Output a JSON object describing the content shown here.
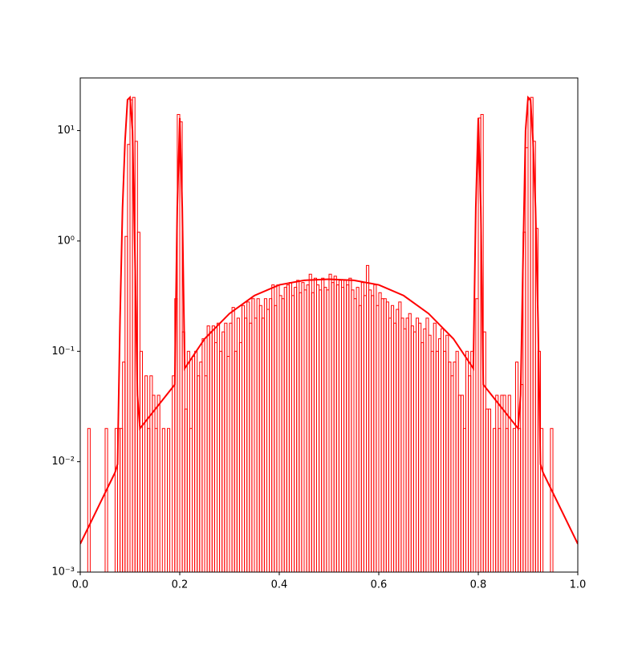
{
  "chart_data": {
    "type": "histogram",
    "color": "#ff0000",
    "log_y": true,
    "bins": [
      0,
      0.005,
      0.01,
      0.015,
      0.02,
      0.025,
      0.03,
      0.035,
      0.04,
      0.045,
      0.05,
      0.055,
      0.06,
      0.065,
      0.07,
      0.075,
      0.08,
      0.085,
      0.09,
      0.095,
      0.1,
      0.105,
      0.11,
      0.115,
      0.12,
      0.125,
      0.13,
      0.135,
      0.14,
      0.145,
      0.15,
      0.155,
      0.16,
      0.165,
      0.17,
      0.175,
      0.18,
      0.185,
      0.19,
      0.195,
      0.2,
      0.205,
      0.21,
      0.215,
      0.22,
      0.225,
      0.23,
      0.235,
      0.24,
      0.245,
      0.25,
      0.255,
      0.26,
      0.265,
      0.27,
      0.275,
      0.28,
      0.285,
      0.29,
      0.295,
      0.3,
      0.305,
      0.31,
      0.315,
      0.32,
      0.325,
      0.33,
      0.335,
      0.34,
      0.345,
      0.35,
      0.355,
      0.36,
      0.365,
      0.37,
      0.375,
      0.38,
      0.385,
      0.39,
      0.395,
      0.4,
      0.405,
      0.41,
      0.415,
      0.42,
      0.425,
      0.43,
      0.435,
      0.44,
      0.445,
      0.45,
      0.455,
      0.46,
      0.465,
      0.47,
      0.475,
      0.48,
      0.485,
      0.49,
      0.495,
      0.5,
      0.505,
      0.51,
      0.515,
      0.52,
      0.525,
      0.53,
      0.535,
      0.54,
      0.545,
      0.55,
      0.555,
      0.56,
      0.565,
      0.57,
      0.575,
      0.58,
      0.585,
      0.59,
      0.595,
      0.6,
      0.605,
      0.61,
      0.615,
      0.62,
      0.625,
      0.63,
      0.635,
      0.64,
      0.645,
      0.65,
      0.655,
      0.66,
      0.665,
      0.67,
      0.675,
      0.68,
      0.685,
      0.69,
      0.695,
      0.7,
      0.705,
      0.71,
      0.715,
      0.72,
      0.725,
      0.73,
      0.735,
      0.74,
      0.745,
      0.75,
      0.755,
      0.76,
      0.765,
      0.77,
      0.775,
      0.78,
      0.785,
      0.79,
      0.795,
      0.8,
      0.805,
      0.81,
      0.815,
      0.82,
      0.825,
      0.83,
      0.835,
      0.84,
      0.845,
      0.85,
      0.855,
      0.86,
      0.865,
      0.87,
      0.875,
      0.88,
      0.885,
      0.89,
      0.895,
      0.9,
      0.905,
      0.91,
      0.915,
      0.92,
      0.925,
      0.93,
      0.935,
      0.94,
      0.945,
      0.95,
      0.955,
      0.96,
      0.965,
      0.97,
      0.975,
      0.98,
      0.985,
      0.99,
      0.995,
      1
    ],
    "values": [
      0,
      0,
      0,
      0.02,
      0,
      0,
      0,
      0,
      0,
      0,
      0.02,
      0,
      0,
      0,
      0.02,
      0.02,
      0.02,
      0.08,
      1.1,
      7.5,
      19,
      20,
      8,
      1.2,
      0.1,
      0,
      0.06,
      0.02,
      0.06,
      0.04,
      0.02,
      0.04,
      0,
      0.02,
      0,
      0.02,
      0,
      0.06,
      0.3,
      14,
      12,
      0.15,
      0.03,
      0.1,
      0.02,
      0.09,
      0.1,
      0.06,
      0.08,
      0.13,
      0.06,
      0.17,
      0.15,
      0.17,
      0.12,
      0.18,
      0.1,
      0.15,
      0.18,
      0.09,
      0.18,
      0.25,
      0.1,
      0.2,
      0.12,
      0.26,
      0.2,
      0.28,
      0.18,
      0.3,
      0.2,
      0.3,
      0.26,
      0.2,
      0.3,
      0.24,
      0.3,
      0.4,
      0.26,
      0.4,
      0.32,
      0.3,
      0.38,
      0.4,
      0.42,
      0.32,
      0.38,
      0.44,
      0.34,
      0.42,
      0.36,
      0.4,
      0.5,
      0.34,
      0.46,
      0.4,
      0.36,
      0.46,
      0.38,
      0.36,
      0.5,
      0.42,
      0.48,
      0.4,
      0.44,
      0.38,
      0.44,
      0.4,
      0.46,
      0.36,
      0.3,
      0.38,
      0.26,
      0.42,
      0.32,
      0.6,
      0.36,
      0.32,
      0.4,
      0.26,
      0.34,
      0.3,
      0.3,
      0.28,
      0.2,
      0.26,
      0.18,
      0.24,
      0.28,
      0.2,
      0.16,
      0.2,
      0.22,
      0.17,
      0.15,
      0.2,
      0.18,
      0.12,
      0.16,
      0.2,
      0.14,
      0.1,
      0.18,
      0.1,
      0.13,
      0.16,
      0.1,
      0.14,
      0.08,
      0.06,
      0.08,
      0.1,
      0.04,
      0.04,
      0.02,
      0.1,
      0.06,
      0.1,
      0,
      0.3,
      13,
      14,
      0.15,
      0.03,
      0.03,
      0,
      0.02,
      0.04,
      0.02,
      0.04,
      0.04,
      0.02,
      0.04,
      0,
      0.02,
      0.08,
      0.02,
      0.05,
      1.2,
      7,
      19,
      20,
      8,
      1.3,
      0.1,
      0.02,
      0,
      0,
      0,
      0.02,
      0,
      0,
      0,
      0,
      0,
      0,
      0,
      0,
      0,
      0
    ],
    "line": {
      "color": "#ff0000",
      "x": [
        0,
        0.07,
        0.075,
        0.08,
        0.085,
        0.09,
        0.095,
        0.1,
        0.105,
        0.11,
        0.115,
        0.12,
        0.19,
        0.195,
        0.2,
        0.205,
        0.21,
        0.25,
        0.3,
        0.35,
        0.4,
        0.45,
        0.5,
        0.55,
        0.6,
        0.65,
        0.7,
        0.75,
        0.79,
        0.795,
        0.8,
        0.805,
        0.81,
        0.88,
        0.885,
        0.89,
        0.895,
        0.9,
        0.905,
        0.91,
        0.915,
        0.92,
        0.925,
        0.93,
        1
      ],
      "y": [
        0.0018,
        0.008,
        0.0095,
        0.2,
        2,
        8,
        19,
        20,
        10,
        0.7,
        0.04,
        0.02,
        0.05,
        2,
        13,
        2,
        0.07,
        0.13,
        0.22,
        0.32,
        0.4,
        0.44,
        0.45,
        0.44,
        0.4,
        0.32,
        0.22,
        0.13,
        0.07,
        2,
        13,
        2,
        0.05,
        0.02,
        0.04,
        0.7,
        10,
        20,
        19,
        8,
        2,
        0.2,
        0.0095,
        0.008,
        0.0018
      ]
    },
    "xlim": [
      0,
      1
    ],
    "ylim": [
      0.001,
      30
    ],
    "xticks": [
      {
        "value": 0,
        "label": "0.0"
      },
      0.2,
      0.4,
      0.6,
      0.8,
      {
        "value": 1,
        "label": "1.0"
      }
    ],
    "yticks": [
      {
        "value": 0.001,
        "label": "10⁻³"
      },
      {
        "value": 0.01,
        "label": "10⁻²"
      },
      {
        "value": 0.1,
        "label": "10⁻¹"
      },
      {
        "value": 1,
        "label": "10⁰"
      },
      {
        "value": 10,
        "label": "10¹"
      }
    ]
  }
}
